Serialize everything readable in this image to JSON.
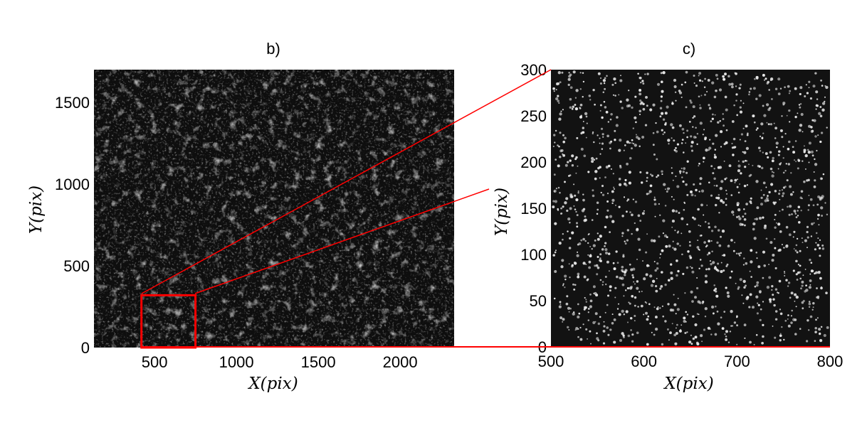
{
  "chart_data": [
    {
      "type": "image",
      "title": "b)",
      "xlabel": "X(pix)",
      "ylabel": "Y(pix)",
      "xlim": [
        130,
        2330
      ],
      "ylim": [
        0,
        1700
      ],
      "xticks": [
        500,
        1000,
        1500,
        2000
      ],
      "yticks": [
        0,
        500,
        1000,
        1500
      ],
      "xtick_labels": [
        "500",
        "1000",
        "1500",
        "2000"
      ],
      "ytick_labels": [
        "0",
        "500",
        "1000",
        "1500"
      ],
      "zoom_box": {
        "x0": 420,
        "x1": 750,
        "y0": 0,
        "y1": 320
      }
    },
    {
      "type": "image",
      "title": "c)",
      "xlabel": "X(pix)",
      "ylabel": "Y(pix)",
      "xlim": [
        500,
        800
      ],
      "ylim": [
        0,
        300
      ],
      "xticks": [
        500,
        600,
        700,
        800
      ],
      "yticks": [
        0,
        50,
        100,
        150,
        200,
        250,
        300
      ],
      "xtick_labels": [
        "500",
        "600",
        "700",
        "800"
      ],
      "ytick_labels": [
        "0",
        "50",
        "100",
        "150",
        "200",
        "250",
        "300"
      ]
    }
  ],
  "colors": {
    "highlight": "#ff0000",
    "image_bg": "#0e0e0e",
    "particle": "#e8e8e8"
  }
}
